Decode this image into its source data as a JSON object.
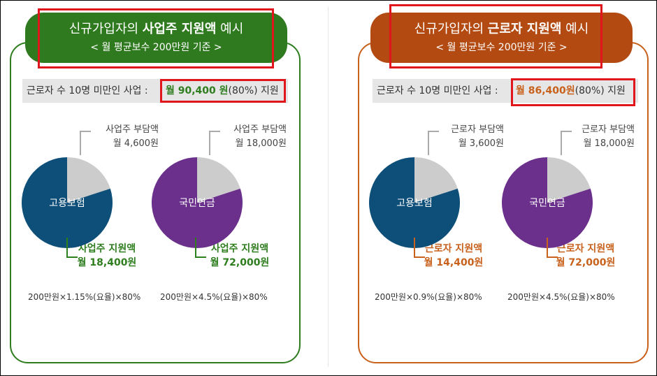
{
  "colors": {
    "left_accent": "#2e7d1e",
    "left_title_bg": "#2f7a1f",
    "right_accent": "#c8611c",
    "right_title_bg": "#b34a11",
    "employment_insurance": "#0e4f79",
    "national_pension": "#6b2f8c",
    "burden_slice": "#cccccc",
    "highlight_box": "#e0161c"
  },
  "panels": [
    {
      "title_prefix": "신규가입자의",
      "title_bold": "사업주 지원액",
      "title_suffix": "예시",
      "subtitle": "< 월 평균보수 200만원 기준 >",
      "summary_prefix": "근로자 수 10명 미만인 사업 :",
      "summary_amount": "월 90,400 원",
      "summary_rate": "(80%) 지원",
      "pies": [
        {
          "label": "고용보험",
          "burden_label": "사업주 부담액",
          "burden_amount": "월 4,600원",
          "support_label": "사업주 지원액",
          "support_amount": "월 18,400원",
          "formula": "200만원×1.15%(요율)×80%"
        },
        {
          "label": "국민연금",
          "burden_label": "사업주 부담액",
          "burden_amount": "월 18,000원",
          "support_label": "사업주 지원액",
          "support_amount": "월 72,000원",
          "formula": "200만원×4.5%(요율)×80%"
        }
      ]
    },
    {
      "title_prefix": "신규가입자의",
      "title_bold": "근로자 지원액",
      "title_suffix": "예시",
      "subtitle": "< 월 평균보수 200만원 기준 >",
      "summary_prefix": "근로자 수 10명 미만인 사업 :",
      "summary_amount": "월 86,400원",
      "summary_rate": "(80%) 지원",
      "pies": [
        {
          "label": "고용보험",
          "burden_label": "근로자 부담액",
          "burden_amount": "월 3,600원",
          "support_label": "근로자 지원액",
          "support_amount": "월 14,400원",
          "formula": "200만원×0.9%(요율)×80%"
        },
        {
          "label": "국민연금",
          "burden_label": "근로자 부담액",
          "burden_amount": "월 18,000원",
          "support_label": "근로자 지원액",
          "support_amount": "월 72,000원",
          "formula": "200만원×4.5%(요율)×80%"
        }
      ]
    }
  ],
  "chart_data": [
    {
      "type": "pie",
      "title": "고용보험",
      "slices": [
        {
          "name": "사업주 부담액",
          "value": 4600
        },
        {
          "name": "사업주 지원액",
          "value": 18400
        }
      ]
    },
    {
      "type": "pie",
      "title": "국민연금",
      "slices": [
        {
          "name": "사업주 부담액",
          "value": 18000
        },
        {
          "name": "사업주 지원액",
          "value": 72000
        }
      ]
    },
    {
      "type": "pie",
      "title": "고용보험",
      "slices": [
        {
          "name": "근로자 부담액",
          "value": 3600
        },
        {
          "name": "근로자 지원액",
          "value": 14400
        }
      ]
    },
    {
      "type": "pie",
      "title": "국민연금",
      "slices": [
        {
          "name": "근로자 부담액",
          "value": 18000
        },
        {
          "name": "근로자 지원액",
          "value": 72000
        }
      ]
    }
  ]
}
